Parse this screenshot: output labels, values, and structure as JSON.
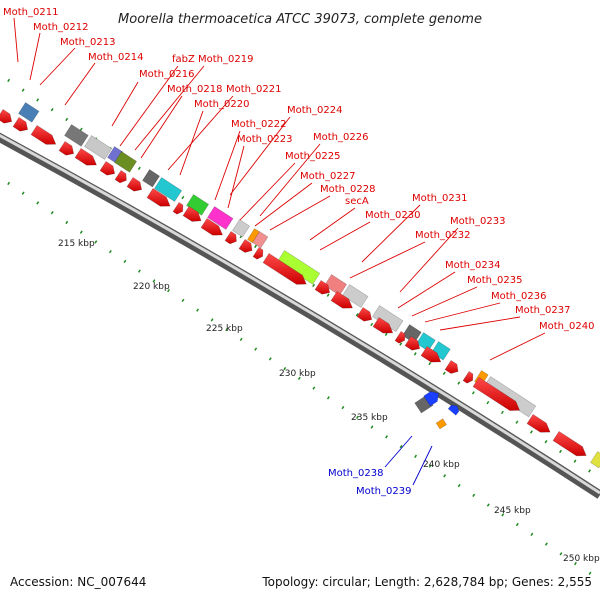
{
  "title": "Moorella thermoacetica ATCC 39073, complete genome",
  "footer": {
    "accession": "Accession: NC_007644",
    "summary": "Topology: circular; Length: 2,628,784 bp; Genes: 2,555"
  },
  "ticks": [
    "215 kbp",
    "220 kbp",
    "225 kbp",
    "230 kbp",
    "235 kbp",
    "240 kbp",
    "245 kbp",
    "250 kbp"
  ],
  "gene_labels": [
    {
      "text": "Moth_0211",
      "color": "#dd0000"
    },
    {
      "text": "Moth_0212",
      "color": "#dd0000"
    },
    {
      "text": "Moth_0213",
      "color": "#dd0000"
    },
    {
      "text": "Moth_0214",
      "color": "#dd0000"
    },
    {
      "text": "Moth_0216",
      "color": "#dd0000"
    },
    {
      "text": "fabZ",
      "color": "#dd0000"
    },
    {
      "text": "Moth_0219",
      "color": "#dd0000"
    },
    {
      "text": "Moth_0218",
      "color": "#dd0000"
    },
    {
      "text": "Moth_0221",
      "color": "#dd0000"
    },
    {
      "text": "Moth_0220",
      "color": "#dd0000"
    },
    {
      "text": "Moth_0224",
      "color": "#dd0000"
    },
    {
      "text": "Moth_0222",
      "color": "#dd0000"
    },
    {
      "text": "Moth_0223",
      "color": "#dd0000"
    },
    {
      "text": "Moth_0226",
      "color": "#dd0000"
    },
    {
      "text": "Moth_0225",
      "color": "#dd0000"
    },
    {
      "text": "Moth_0227",
      "color": "#dd0000"
    },
    {
      "text": "Moth_0228",
      "color": "#dd0000"
    },
    {
      "text": "secA",
      "color": "#dd0000"
    },
    {
      "text": "Moth_0231",
      "color": "#dd0000"
    },
    {
      "text": "Moth_0230",
      "color": "#dd0000"
    },
    {
      "text": "Moth_0233",
      "color": "#dd0000"
    },
    {
      "text": "Moth_0232",
      "color": "#dd0000"
    },
    {
      "text": "Moth_0234",
      "color": "#dd0000"
    },
    {
      "text": "Moth_0235",
      "color": "#dd0000"
    },
    {
      "text": "Moth_0236",
      "color": "#dd0000"
    },
    {
      "text": "Moth_0237",
      "color": "#dd0000"
    },
    {
      "text": "Moth_0240",
      "color": "#dd0000"
    },
    {
      "text": "Moth_0238",
      "color": "#0000cc"
    },
    {
      "text": "Moth_0239",
      "color": "#0000cc"
    }
  ],
  "colors": {
    "forward_cds": "#ff0000",
    "reverse_cds": "#ff0000",
    "backbone": "#9e9e9e",
    "tick_marks": "#1f8a1f",
    "label_line_forward": "#dd0000",
    "label_line_reverse": "#0000cc"
  }
}
